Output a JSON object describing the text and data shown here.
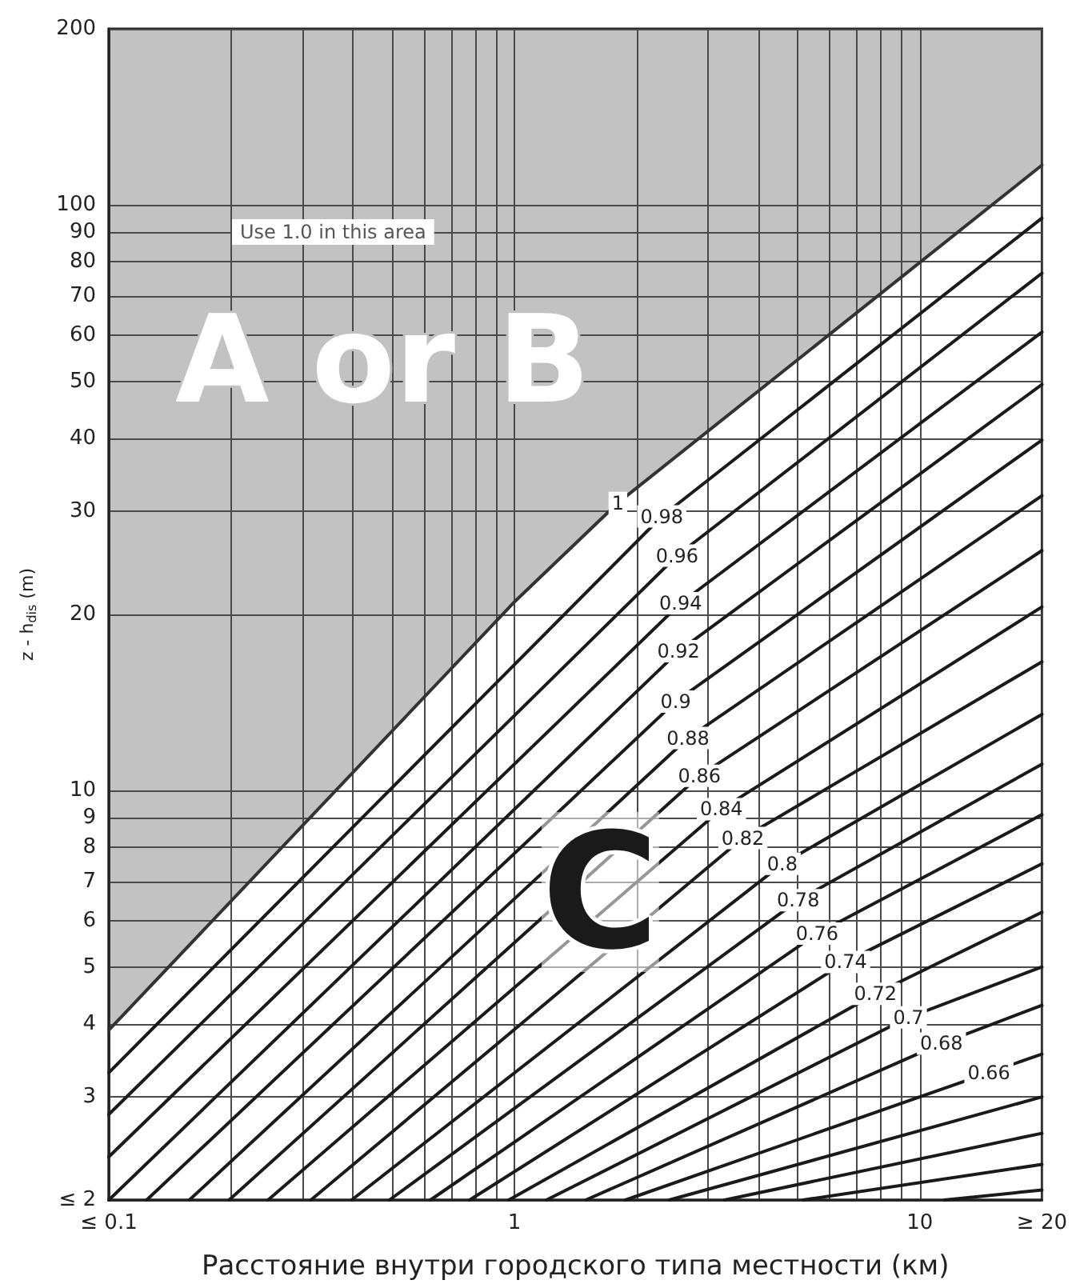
{
  "chart_data": {
    "type": "line",
    "xlabel": "Расстояние внутри городского типа местности (км)",
    "ylabel": "z - h$_{dis}$ (m)",
    "log": "xy",
    "grid": true,
    "legend": false,
    "marker": "none",
    "line_style": "solid",
    "xlim": [
      0.1,
      20
    ],
    "ylim": [
      2,
      200
    ],
    "xticks": [
      {
        "value": 0.1,
        "label": "≤ 0.1"
      },
      {
        "value": 0.2,
        "label": null
      },
      {
        "value": 0.3,
        "label": null
      },
      {
        "value": 0.4,
        "label": null
      },
      {
        "value": 0.5,
        "label": null
      },
      {
        "value": 0.6,
        "label": null
      },
      {
        "value": 0.7,
        "label": null
      },
      {
        "value": 0.8,
        "label": null
      },
      {
        "value": 0.9,
        "label": null
      },
      1,
      {
        "value": 2,
        "label": null
      },
      {
        "value": 3,
        "label": null
      },
      {
        "value": 4,
        "label": null
      },
      {
        "value": 5,
        "label": null
      },
      {
        "value": 6,
        "label": null
      },
      {
        "value": 7,
        "label": null
      },
      {
        "value": 8,
        "label": null
      },
      {
        "value": 9,
        "label": null
      },
      10,
      {
        "value": 20,
        "label": "≥ 20"
      }
    ],
    "yticks": [
      {
        "value": 2,
        "label": "≤ 2"
      },
      3,
      4,
      5,
      6,
      7,
      8,
      9,
      10,
      20,
      30,
      40,
      50,
      60,
      70,
      80,
      90,
      100,
      200
    ],
    "annotations": [
      "Use 1.0 in this area",
      "A or B",
      "C"
    ],
    "series": [
      {
        "name": "1",
        "color": "#333333",
        "x": [
          0.1,
          1,
          1.8,
          20
        ],
        "values": [
          3.9,
          21,
          31,
          117
        ]
      },
      {
        "name": "0.98",
        "color": "#1a1a1a",
        "x": [
          0.1,
          2.31,
          20
        ],
        "values": [
          3.3,
          29.4,
          95
        ]
      },
      {
        "name": "0.96",
        "color": "#1a1a1a",
        "x": [
          0.1,
          2.52,
          20
        ],
        "values": [
          2.8,
          25.2,
          76.5
        ]
      },
      {
        "name": "0.94",
        "color": "#1a1a1a",
        "x": [
          0.1,
          2.57,
          20
        ],
        "values": [
          2.37,
          20.9,
          60.7
        ]
      },
      {
        "name": "0.92",
        "color": "#1a1a1a",
        "x": [
          0.1,
          2.54,
          20
        ],
        "values": [
          2,
          17.3,
          49.4
        ]
      },
      {
        "name": "0.9",
        "color": "#1a1a1a",
        "x": [
          0.124,
          2.5,
          20
        ],
        "values": [
          2,
          14.2,
          39.7
        ]
      },
      {
        "name": "0.88",
        "color": "#1a1a1a",
        "x": [
          0.158,
          2.68,
          20
        ],
        "values": [
          2,
          12.3,
          31.9
        ]
      },
      {
        "name": "0.86",
        "color": "#1a1a1a",
        "x": [
          0.198,
          2.86,
          20
        ],
        "values": [
          2,
          10.6,
          25.7
        ]
      },
      {
        "name": "0.84",
        "color": "#1a1a1a",
        "x": [
          0.247,
          3.24,
          20
        ],
        "values": [
          2,
          9.3,
          20.6
        ]
      },
      {
        "name": "0.82",
        "color": "#1a1a1a",
        "x": [
          0.315,
          3.66,
          20
        ],
        "values": [
          2,
          8.3,
          16.6
        ]
      },
      {
        "name": "0.8",
        "color": "#1a1a1a",
        "x": [
          0.397,
          4.58,
          20
        ],
        "values": [
          2,
          7.5,
          13.5
        ]
      },
      {
        "name": "0.78",
        "color": "#1a1a1a",
        "x": [
          0.492,
          5.01,
          20
        ],
        "values": [
          2,
          6.5,
          11.1
        ]
      },
      {
        "name": "0.76",
        "color": "#1a1a1a",
        "x": [
          0.621,
          5.58,
          20
        ],
        "values": [
          2,
          5.7,
          9.1
        ]
      },
      {
        "name": "0.74",
        "color": "#1a1a1a",
        "x": [
          0.776,
          6.56,
          20
        ],
        "values": [
          2,
          5.1,
          7.5
        ]
      },
      {
        "name": "0.72",
        "color": "#1a1a1a",
        "x": [
          0.969,
          7.77,
          20
        ],
        "values": [
          2,
          4.5,
          6.2
        ]
      },
      {
        "name": "0.7",
        "color": "#1a1a1a",
        "x": [
          1.2,
          9.37,
          20
        ],
        "values": [
          2,
          4.1,
          5.0
        ]
      },
      {
        "name": "0.68",
        "color": "#1a1a1a",
        "x": [
          1.5,
          11.3,
          20
        ],
        "values": [
          2,
          3.7,
          4.3
        ]
      },
      {
        "name": "0.66",
        "color": "#1a1a1a",
        "x": [
          1.88,
          14.8,
          20
        ],
        "values": [
          2,
          3.3,
          3.55
        ]
      },
      {
        "color": "#1a1a1a",
        "x": [
          2.41,
          20
        ],
        "values": [
          2,
          3.0
        ]
      },
      {
        "color": "#1a1a1a",
        "x": [
          3.3,
          20
        ],
        "values": [
          2,
          2.6
        ]
      },
      {
        "color": "#1a1a1a",
        "x": [
          5.15,
          20
        ],
        "values": [
          2,
          2.3
        ]
      },
      {
        "color": "#1a1a1a",
        "x": [
          11.5,
          20
        ],
        "values": [
          2,
          2.08
        ]
      }
    ]
  }
}
